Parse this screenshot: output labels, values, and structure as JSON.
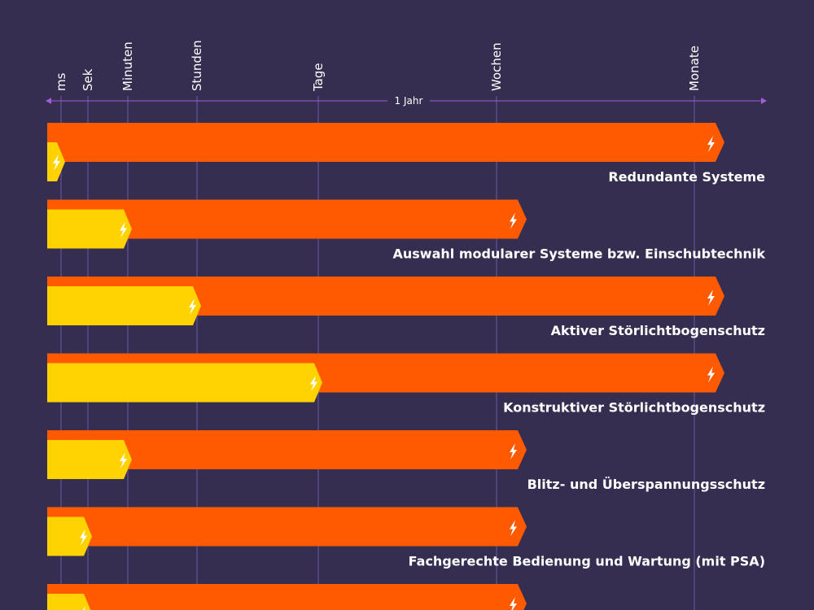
{
  "colors": {
    "background": "#352e50",
    "outer_bar": "#ff5a00",
    "inner_bar": "#ffd200",
    "gridline": "#6f5ba3",
    "span_arrow": "#a35bd6",
    "icon": "#ffffff"
  },
  "icons": {
    "bar_end": "lightning-bolt-icon"
  },
  "chart_data": {
    "type": "bar",
    "orientation": "horizontal",
    "x_scale": "ordinal-time",
    "x_ticks": [
      "ms",
      "Sek",
      "Minuten",
      "Stunden",
      "Tage",
      "Wochen",
      "Monate"
    ],
    "span_annotation": "1 Jahr",
    "grid": true,
    "series": [
      {
        "role": "inner"
      },
      {
        "role": "outer"
      }
    ],
    "rows": [
      {
        "label": "Redundante Systeme",
        "inner_end": "ms",
        "outer_end": "Monate"
      },
      {
        "label": "Auswahl modularer Systeme bzw. Einschubtechnik",
        "inner_end": "Minuten",
        "outer_end": "Wochen"
      },
      {
        "label": "Aktiver Störlichtbogenschutz",
        "inner_end": "Stunden",
        "outer_end": "Monate"
      },
      {
        "label": "Konstruktiver Störlichtbogenschutz",
        "inner_end": "Tage",
        "outer_end": "Monate"
      },
      {
        "label": "Blitz- und Überspannungsschutz",
        "inner_end": "Minuten",
        "outer_end": "Wochen"
      },
      {
        "label": "Fachgerechte Bedienung und Wartung (mit PSA)",
        "inner_end": "Sek",
        "outer_end": "Wochen"
      },
      {
        "label": "",
        "inner_end": "Sek",
        "outer_end": "Wochen"
      }
    ]
  }
}
